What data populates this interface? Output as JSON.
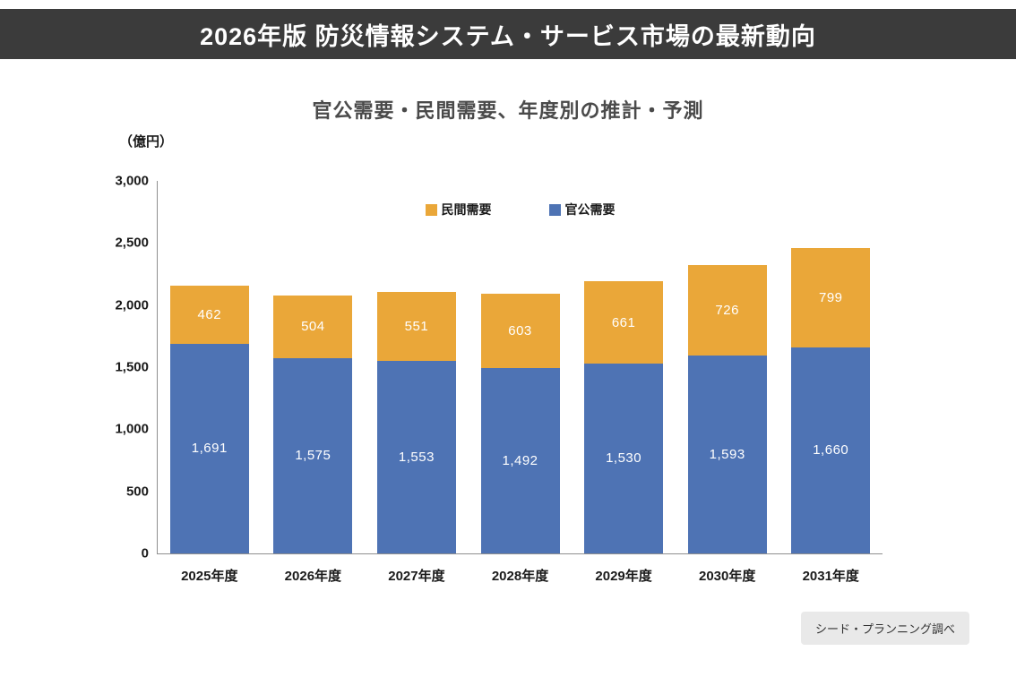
{
  "header": {
    "title": "2026年版 防災情報システム・サービス市場の最新動向"
  },
  "chart": {
    "title": "官公需要・民間需要、年度別の推計・予測",
    "unit_label": "（億円）",
    "source_note": "シード・プランニング調べ"
  },
  "chart_data": {
    "type": "bar",
    "stacked": true,
    "title": "官公需要・民間需要、年度別の推計・予測",
    "ylabel": "（億円）",
    "xlabel": "",
    "categories": [
      "2025年度",
      "2026年度",
      "2027年度",
      "2028年度",
      "2029年度",
      "2030年度",
      "2031年度"
    ],
    "series": [
      {
        "name": "官公需要",
        "color": "#4e73b4",
        "values": [
          1691,
          1575,
          1553,
          1492,
          1530,
          1593,
          1660
        ]
      },
      {
        "name": "民間需要",
        "color": "#eaa739",
        "values": [
          462,
          504,
          551,
          603,
          661,
          726,
          799
        ]
      }
    ],
    "legend_order": [
      "民間需要",
      "官公需要"
    ],
    "legend_position": "top-center",
    "ylim": [
      0,
      3000
    ],
    "yticks": [
      0,
      500,
      1000,
      1500,
      2000,
      2500,
      3000
    ],
    "grid": false
  },
  "colors": {
    "header_background": "#3b3b3b",
    "public_demand_bar": "#4e73b4",
    "private_demand_bar": "#eaa739",
    "source_badge_background": "#e9e9e9"
  }
}
